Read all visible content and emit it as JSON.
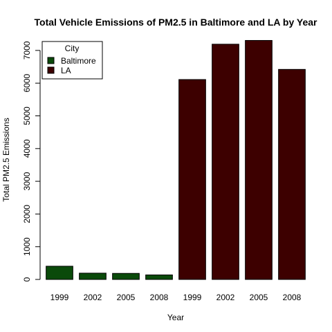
{
  "chart_data": {
    "type": "bar",
    "title": "Total Vehicle Emissions of PM2.5 in Baltimore and LA by Year",
    "xlabel": "Year",
    "ylabel": "Total PM2.5 Emissions",
    "ylim": [
      0,
      7300
    ],
    "yticks": [
      0,
      1000,
      2000,
      3000,
      4000,
      5000,
      6000,
      7000
    ],
    "grid": false,
    "legend": {
      "title": "City",
      "position": "top-left"
    },
    "categories": [
      "1999",
      "2002",
      "2005",
      "2008",
      "1999",
      "2002",
      "2005",
      "2008"
    ],
    "series": [
      {
        "name": "Baltimore",
        "color": "#0a4a0a",
        "values": [
          404,
          192,
          185,
          138,
          null,
          null,
          null,
          null
        ]
      },
      {
        "name": "LA",
        "color": "#3d0000",
        "values": [
          null,
          null,
          null,
          null,
          6110,
          7190,
          7305,
          6420
        ]
      }
    ]
  }
}
